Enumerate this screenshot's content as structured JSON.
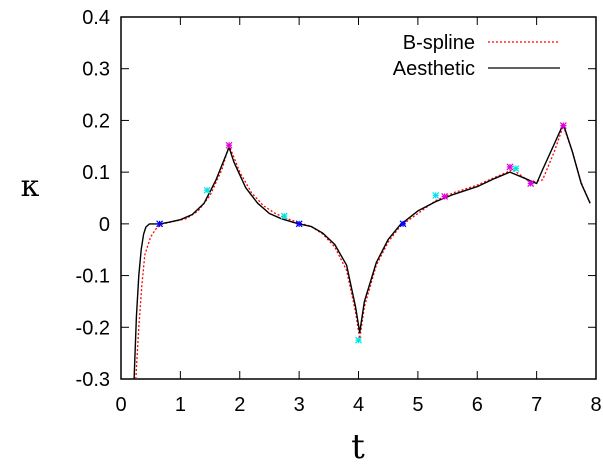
{
  "chart_data": {
    "type": "line",
    "xlabel": "t",
    "ylabel": "κ",
    "xlim": [
      0,
      8
    ],
    "ylim": [
      -0.3,
      0.4
    ],
    "xticks": [
      0,
      1,
      2,
      3,
      4,
      5,
      6,
      7,
      8
    ],
    "yticks": [
      -0.3,
      -0.2,
      -0.1,
      0,
      0.1,
      0.2,
      0.3,
      0.4
    ],
    "xtick_labels": [
      "0",
      "1",
      "2",
      "3",
      "4",
      "5",
      "6",
      "7",
      "8"
    ],
    "ytick_labels": [
      "-0.3",
      "-0.2",
      "-0.1",
      "0",
      "0.1",
      "0.2",
      "0.3",
      "0.4"
    ],
    "grid": false,
    "legend_position": "top-right",
    "series": [
      {
        "name": "B-spline",
        "color": "#ff0000",
        "style": "dotted",
        "x": [
          0.25,
          0.3,
          0.35,
          0.4,
          0.5,
          0.6,
          0.7,
          0.9,
          1.1,
          1.3,
          1.5,
          1.7,
          1.82,
          2.0,
          2.2,
          2.4,
          2.6,
          2.8,
          3.0,
          3.2,
          3.4,
          3.6,
          3.8,
          3.95,
          4.02,
          4.1,
          4.3,
          4.5,
          4.7,
          5.0,
          5.3,
          5.6,
          6.0,
          6.3,
          6.6,
          6.9,
          7.1,
          7.3,
          7.45,
          7.6,
          7.75,
          7.9
        ],
        "y": [
          -0.3,
          -0.2,
          -0.12,
          -0.06,
          -0.025,
          -0.008,
          0.0,
          0.005,
          0.01,
          0.025,
          0.055,
          0.105,
          0.152,
          0.1,
          0.06,
          0.035,
          0.02,
          0.01,
          0.002,
          -0.005,
          -0.02,
          -0.045,
          -0.09,
          -0.17,
          -0.222,
          -0.16,
          -0.08,
          -0.035,
          -0.005,
          0.02,
          0.045,
          0.06,
          0.075,
          0.09,
          0.105,
          0.08,
          0.085,
          0.14,
          0.19,
          0.14,
          0.08,
          0.04
        ]
      },
      {
        "name": "Aesthetic",
        "color": "#000000",
        "style": "solid",
        "x": [
          0.22,
          0.26,
          0.3,
          0.34,
          0.38,
          0.42,
          0.48,
          0.55,
          0.65,
          0.8,
          1.0,
          1.2,
          1.4,
          1.6,
          1.75,
          1.82,
          1.9,
          2.1,
          2.3,
          2.5,
          2.7,
          2.9,
          3.0,
          3.2,
          3.4,
          3.6,
          3.8,
          3.95,
          4.02,
          4.1,
          4.3,
          4.5,
          4.7,
          5.0,
          5.3,
          5.6,
          6.0,
          6.3,
          6.55,
          6.8,
          7.0,
          7.1,
          7.3,
          7.45,
          7.6,
          7.75,
          7.9
        ],
        "y": [
          -0.3,
          -0.18,
          -0.1,
          -0.05,
          -0.02,
          -0.006,
          0.0,
          0.0,
          0.0,
          0.003,
          0.008,
          0.018,
          0.04,
          0.085,
          0.128,
          0.148,
          0.12,
          0.07,
          0.04,
          0.02,
          0.01,
          0.003,
          0.0,
          -0.005,
          -0.018,
          -0.04,
          -0.08,
          -0.16,
          -0.21,
          -0.15,
          -0.075,
          -0.03,
          -0.002,
          0.025,
          0.043,
          0.057,
          0.072,
          0.088,
          0.1,
          0.088,
          0.078,
          0.105,
          0.155,
          0.193,
          0.14,
          0.078,
          0.04
        ]
      }
    ],
    "markers": [
      {
        "color": "#0000ff",
        "points": [
          [
            0.65,
            0.0
          ],
          [
            3.0,
            0.0
          ],
          [
            4.75,
            0.0
          ]
        ]
      },
      {
        "color": "#00e5e5",
        "points": [
          [
            1.45,
            0.065
          ],
          [
            2.75,
            0.015
          ],
          [
            4.0,
            -0.225
          ],
          [
            5.3,
            0.055
          ],
          [
            6.65,
            0.107
          ]
        ]
      },
      {
        "color": "#e000e0",
        "points": [
          [
            1.82,
            0.152
          ],
          [
            5.45,
            0.053
          ],
          [
            6.55,
            0.11
          ],
          [
            6.9,
            0.078
          ],
          [
            7.45,
            0.19
          ]
        ]
      }
    ]
  }
}
